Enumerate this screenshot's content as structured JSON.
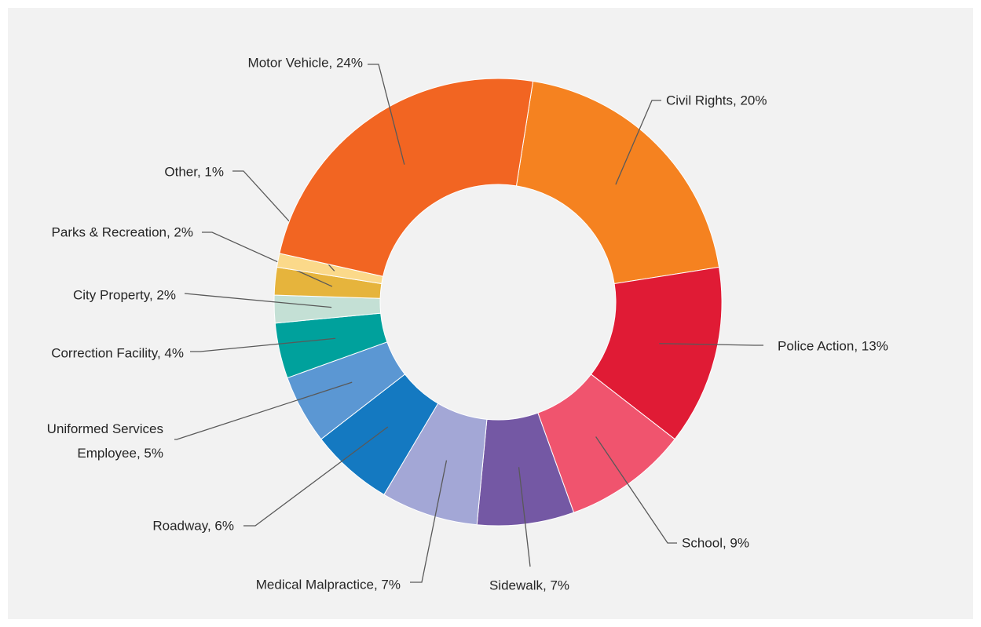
{
  "chart_data": {
    "type": "donut",
    "categories": [
      "Civil Rights",
      "Police Action",
      "School",
      "Sidewalk",
      "Medical Malpractice",
      "Roadway",
      "Uniformed Services Employee",
      "Correction Facility",
      "City Property",
      "Parks & Recreation",
      "Other",
      "Motor Vehicle"
    ],
    "values": [
      20,
      13,
      9,
      7,
      7,
      6,
      5,
      4,
      2,
      2,
      1,
      24
    ],
    "value_labels": [
      "Civil Rights, 20%",
      "Police Action, 13%",
      "School, 9%",
      "Sidewalk, 7%",
      "Medical Malpractice, 7%",
      "Roadway, 6%",
      "Uniformed Services Employee, 5%",
      "Correction Facility, 4%",
      "City Property, 2%",
      "Parks & Recreation, 2%",
      "Other, 1%",
      "Motor Vehicle, 24%"
    ],
    "colors": [
      "#f58220",
      "#e01b35",
      "#f0546e",
      "#7458a4",
      "#a3a7d6",
      "#1479c1",
      "#5b97d3",
      "#00a19c",
      "#c4e0d5",
      "#e6b43c",
      "#fbd98a",
      "#f26522"
    ]
  }
}
